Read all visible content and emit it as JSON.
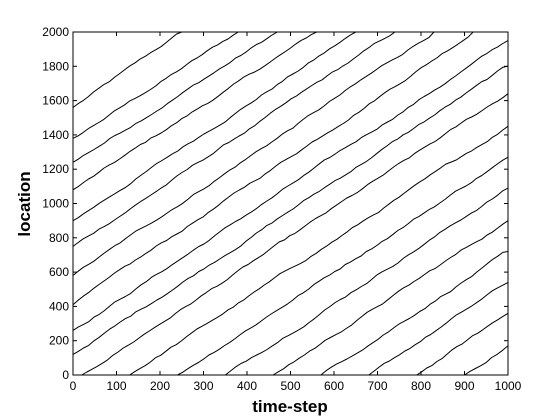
{
  "chart_data": {
    "type": "line",
    "title": "",
    "xlabel": "time-step",
    "ylabel": "location",
    "xlim": [
      0,
      1000
    ],
    "ylim": [
      0,
      2000
    ],
    "x_ticks": [
      "0",
      "100",
      "200",
      "300",
      "400",
      "500",
      "600",
      "700",
      "800",
      "900",
      "1000"
    ],
    "y_ticks": [
      "0",
      "200",
      "400",
      "600",
      "800",
      "1000",
      "1200",
      "1400",
      "1600",
      "1800",
      "2000"
    ],
    "grid": false,
    "line_color": "#000000",
    "series": [
      {
        "x": [
          0,
          250
        ],
        "y": [
          1560,
          2000
        ]
      },
      {
        "x": [
          0,
          380
        ],
        "y": [
          1380,
          2000
        ]
      },
      {
        "x": [
          0,
          470
        ],
        "y": [
          1240,
          2000
        ]
      },
      {
        "x": [
          0,
          560
        ],
        "y": [
          1080,
          2000
        ]
      },
      {
        "x": [
          0,
          650
        ],
        "y": [
          900,
          2000
        ]
      },
      {
        "x": [
          0,
          740
        ],
        "y": [
          750,
          2000
        ]
      },
      {
        "x": [
          0,
          830
        ],
        "y": [
          580,
          2000
        ]
      },
      {
        "x": [
          0,
          920
        ],
        "y": [
          410,
          2000
        ]
      },
      {
        "x": [
          0,
          1000
        ],
        "y": [
          260,
          1950
        ]
      },
      {
        "x": [
          0,
          1000
        ],
        "y": [
          120,
          1800
        ]
      },
      {
        "x": [
          20,
          1000
        ],
        "y": [
          0,
          1640
        ]
      },
      {
        "x": [
          130,
          1000
        ],
        "y": [
          0,
          1450
        ]
      },
      {
        "x": [
          240,
          1000
        ],
        "y": [
          0,
          1270
        ]
      },
      {
        "x": [
          350,
          1000
        ],
        "y": [
          0,
          1090
        ]
      },
      {
        "x": [
          460,
          1000
        ],
        "y": [
          0,
          900
        ]
      },
      {
        "x": [
          570,
          1000
        ],
        "y": [
          0,
          720
        ]
      },
      {
        "x": [
          680,
          1000
        ],
        "y": [
          0,
          540
        ]
      },
      {
        "x": [
          790,
          1000
        ],
        "y": [
          0,
          360
        ]
      },
      {
        "x": [
          900,
          1000
        ],
        "y": [
          0,
          170
        ]
      }
    ]
  }
}
